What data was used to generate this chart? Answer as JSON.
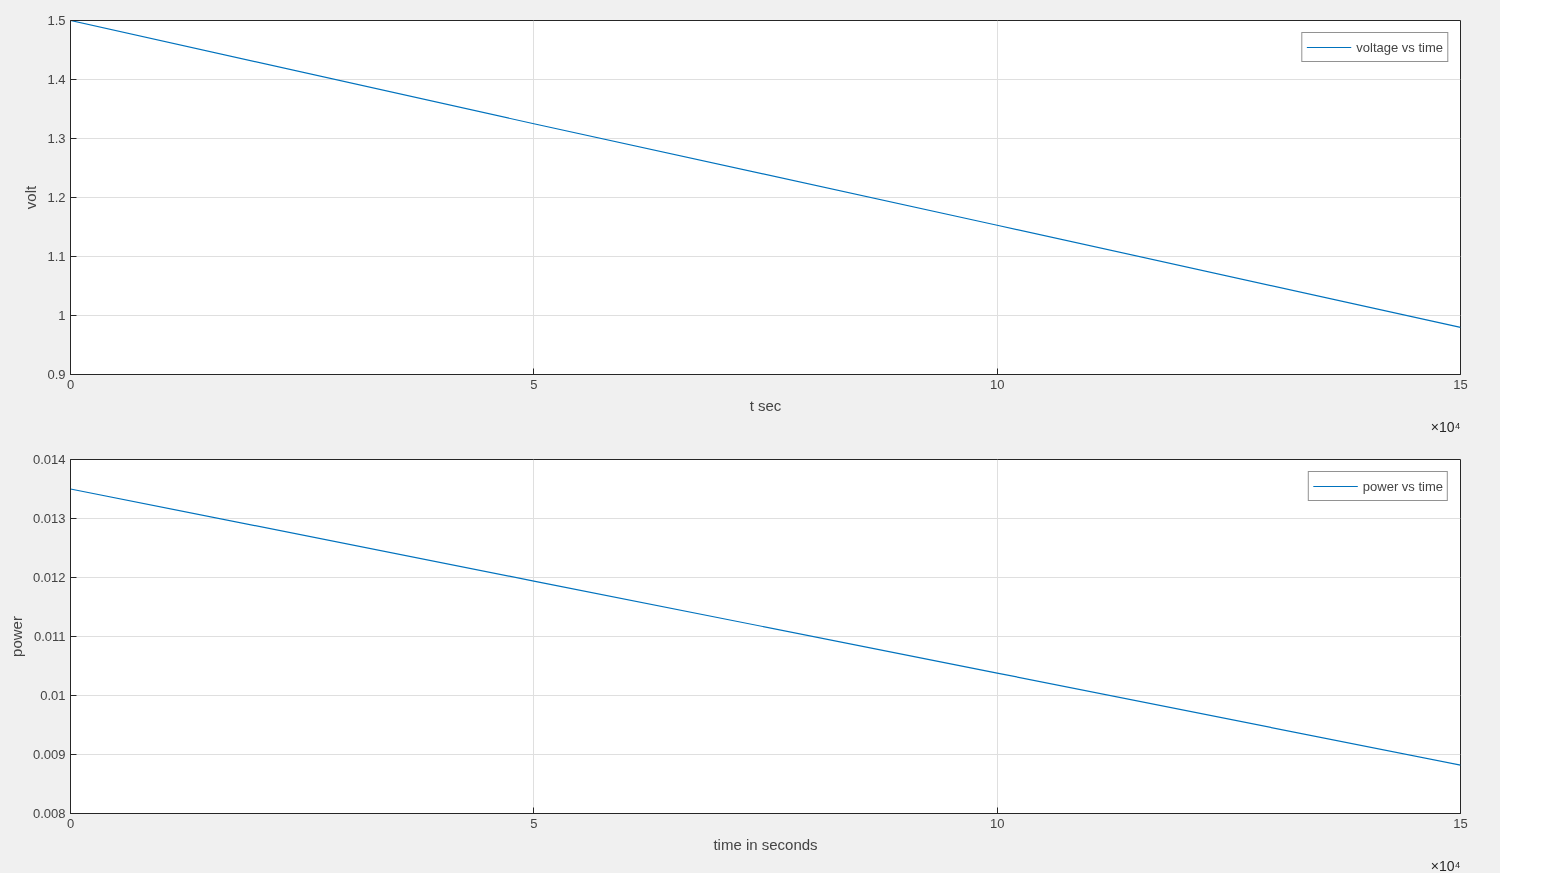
{
  "chart_data": [
    {
      "type": "line",
      "x": [
        0,
        5,
        10,
        15
      ],
      "series": [
        {
          "name": "voltage vs time",
          "color": "#0072bd",
          "values": [
            1.5,
            1.325,
            1.153,
            0.98
          ]
        }
      ],
      "xlabel": "t sec",
      "ylabel": "volt",
      "xlim": [
        0,
        15
      ],
      "xticks": [
        0,
        5,
        10,
        15
      ],
      "ylim": [
        0.9,
        1.5
      ],
      "yticks": [
        0.9,
        1,
        1.1,
        1.2,
        1.3,
        1.4,
        1.5
      ],
      "grid": true,
      "legend": "top right",
      "annotations": [
        "×10⁴"
      ]
    },
    {
      "type": "line",
      "x": [
        0,
        5,
        10,
        15
      ],
      "series": [
        {
          "name": "power vs time",
          "color": "#0072bd",
          "values": [
            0.0135,
            0.01194,
            0.01038,
            0.00882
          ]
        }
      ],
      "xlabel": "time in seconds",
      "ylabel": "power",
      "xlim": [
        0,
        15
      ],
      "xticks": [
        0,
        5,
        10,
        15
      ],
      "ylim": [
        0.008,
        0.014
      ],
      "yticks": [
        0.008,
        0.009,
        0.01,
        0.011,
        0.012,
        0.013,
        0.014
      ],
      "grid": true,
      "legend": "top right",
      "annotations": [
        "×10⁴"
      ]
    }
  ]
}
